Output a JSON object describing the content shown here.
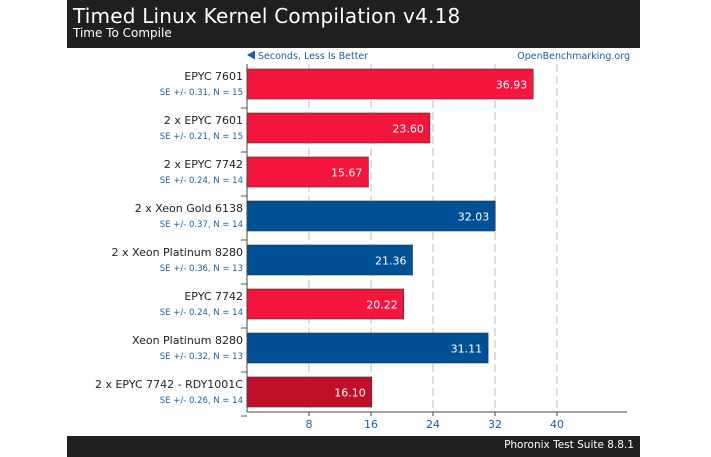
{
  "header": {
    "title": "Timed Linux Kernel Compilation v4.18",
    "subtitle": "Time To Compile"
  },
  "footer": {
    "text": "Phoronix Test Suite 8.8.1"
  },
  "annotations": {
    "direction": "Seconds, Less Is Better",
    "source": "OpenBenchmarking.org"
  },
  "colors": {
    "amd": "#f5163d",
    "intel": "#005095",
    "highlight": "#c00f2b",
    "se_text": "#1a5f9e",
    "grid": "#bdbdbd"
  },
  "chart_data": {
    "type": "bar",
    "orientation": "horizontal",
    "title": "Timed Linux Kernel Compilation v4.18",
    "subtitle": "Time To Compile",
    "xlabel": "Seconds, Less Is Better",
    "xlim": [
      0,
      48
    ],
    "xticks": [
      8,
      16,
      24,
      32,
      40
    ],
    "grid": true,
    "bars": [
      {
        "label": "EPYC 7601",
        "se": "SE +/- 0.31, N = 15",
        "value": 36.93,
        "value_label": "36.93",
        "color": "#f5163d"
      },
      {
        "label": "2 x EPYC 7601",
        "se": "SE +/- 0.21, N = 15",
        "value": 23.6,
        "value_label": "23.60",
        "color": "#f5163d"
      },
      {
        "label": "2 x EPYC 7742",
        "se": "SE +/- 0.24, N = 14",
        "value": 15.67,
        "value_label": "15.67",
        "color": "#f5163d"
      },
      {
        "label": "2 x Xeon Gold 6138",
        "se": "SE +/- 0.37, N = 14",
        "value": 32.03,
        "value_label": "32.03",
        "color": "#005095"
      },
      {
        "label": "2 x Xeon Platinum 8280",
        "se": "SE +/- 0.36, N = 13",
        "value": 21.36,
        "value_label": "21.36",
        "color": "#005095"
      },
      {
        "label": "EPYC 7742",
        "se": "SE +/- 0.24, N = 14",
        "value": 20.22,
        "value_label": "20.22",
        "color": "#f5163d"
      },
      {
        "label": "Xeon Platinum 8280",
        "se": "SE +/- 0.32, N = 13",
        "value": 31.11,
        "value_label": "31.11",
        "color": "#005095"
      },
      {
        "label": "2 x EPYC 7742 - RDY1001C",
        "se": "SE +/- 0.26, N = 14",
        "value": 16.1,
        "value_label": "16.10",
        "color": "#c00f2b"
      }
    ]
  }
}
